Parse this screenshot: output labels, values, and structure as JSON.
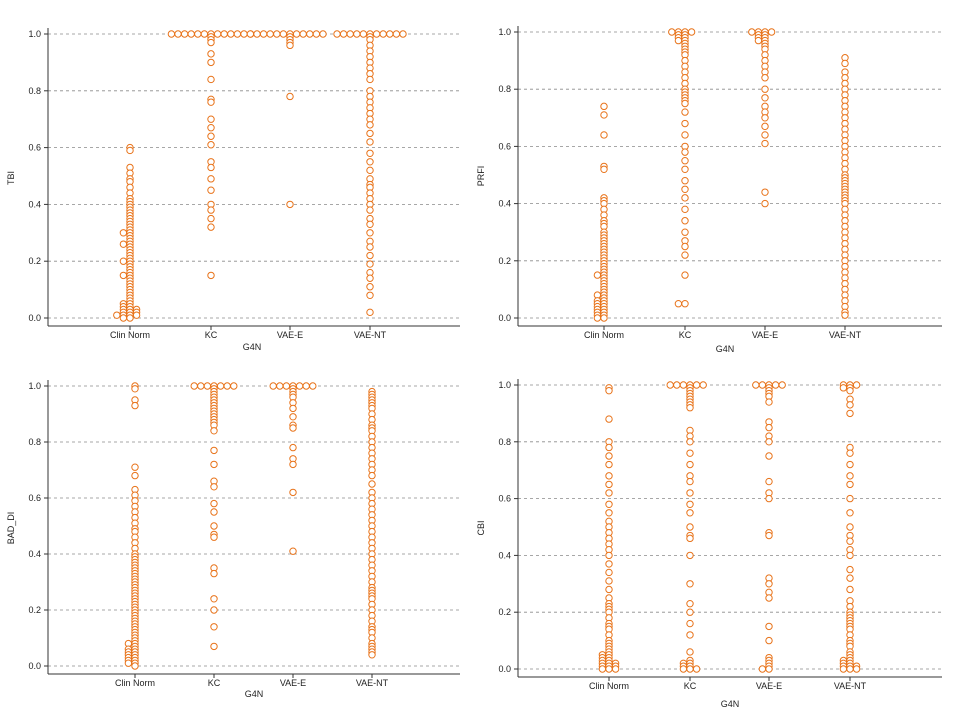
{
  "chart_data": [
    {
      "type": "scatter",
      "ylabel": "TBI",
      "xlabel": "G4N",
      "categories": [
        "Clin Norm",
        "KC",
        "VAE-E",
        "VAE-NT"
      ],
      "yticks": [
        "0.0",
        "0.2",
        "0.4",
        "0.6",
        "0.8",
        "1.0"
      ],
      "ylim": [
        0,
        1
      ],
      "grid": true,
      "marker_color": "#e8731a",
      "series": [
        {
          "category": "Clin Norm",
          "values": [
            0.6,
            0.59,
            0.53,
            0.51,
            0.49,
            0.48,
            0.46,
            0.44,
            0.42,
            0.41,
            0.4,
            0.39,
            0.38,
            0.37,
            0.36,
            0.35,
            0.34,
            0.33,
            0.32,
            0.31,
            0.3,
            0.3,
            0.29,
            0.28,
            0.27,
            0.26,
            0.26,
            0.25,
            0.24,
            0.23,
            0.22,
            0.21,
            0.2,
            0.2,
            0.19,
            0.18,
            0.17,
            0.16,
            0.15,
            0.15,
            0.14,
            0.13,
            0.12,
            0.11,
            0.1,
            0.09,
            0.08,
            0.07,
            0.06,
            0.05,
            0.05,
            0.04,
            0.04,
            0.03,
            0.03,
            0.03,
            0.02,
            0.02,
            0.02,
            0.01,
            0.01,
            0.01,
            0.01,
            0.0,
            0.0
          ]
        },
        {
          "category": "KC",
          "values": [
            1.0,
            1.0,
            1.0,
            1.0,
            1.0,
            1.0,
            1.0,
            1.0,
            1.0,
            1.0,
            1.0,
            1.0,
            1.0,
            0.99,
            0.98,
            0.97,
            0.93,
            0.9,
            0.84,
            0.77,
            0.76,
            0.7,
            0.67,
            0.64,
            0.61,
            0.55,
            0.53,
            0.49,
            0.45,
            0.4,
            0.38,
            0.35,
            0.32,
            0.15
          ]
        },
        {
          "category": "VAE-E",
          "values": [
            1.0,
            1.0,
            1.0,
            1.0,
            1.0,
            1.0,
            1.0,
            1.0,
            1.0,
            1.0,
            1.0,
            1.0,
            0.99,
            0.98,
            0.97,
            0.96,
            0.78,
            0.4
          ]
        },
        {
          "category": "VAE-NT",
          "values": [
            1.0,
            1.0,
            1.0,
            1.0,
            1.0,
            1.0,
            1.0,
            1.0,
            1.0,
            1.0,
            1.0,
            0.99,
            0.98,
            0.96,
            0.94,
            0.92,
            0.9,
            0.88,
            0.86,
            0.84,
            0.8,
            0.78,
            0.76,
            0.74,
            0.72,
            0.7,
            0.68,
            0.65,
            0.62,
            0.58,
            0.55,
            0.52,
            0.49,
            0.47,
            0.46,
            0.44,
            0.42,
            0.4,
            0.38,
            0.35,
            0.33,
            0.3,
            0.27,
            0.25,
            0.22,
            0.19,
            0.16,
            0.14,
            0.11,
            0.08,
            0.02
          ]
        }
      ]
    },
    {
      "type": "scatter",
      "ylabel": "PRFI",
      "xlabel": "G4N",
      "categories": [
        "Clin Norm",
        "KC",
        "VAE-E",
        "VAE-NT"
      ],
      "yticks": [
        "0.0",
        "0.2",
        "0.4",
        "0.6",
        "0.8",
        "1.0"
      ],
      "ylim": [
        0,
        1
      ],
      "grid": true,
      "marker_color": "#e8731a",
      "series": [
        {
          "category": "Clin Norm",
          "values": [
            0.74,
            0.71,
            0.64,
            0.53,
            0.52,
            0.42,
            0.41,
            0.4,
            0.38,
            0.36,
            0.34,
            0.33,
            0.32,
            0.3,
            0.29,
            0.28,
            0.27,
            0.26,
            0.25,
            0.24,
            0.23,
            0.22,
            0.21,
            0.2,
            0.19,
            0.18,
            0.17,
            0.16,
            0.15,
            0.15,
            0.14,
            0.13,
            0.12,
            0.11,
            0.1,
            0.09,
            0.08,
            0.08,
            0.07,
            0.06,
            0.06,
            0.05,
            0.05,
            0.04,
            0.04,
            0.03,
            0.03,
            0.02,
            0.02,
            0.01,
            0.01,
            0.0,
            0.0
          ]
        },
        {
          "category": "KC",
          "values": [
            1.0,
            1.0,
            1.0,
            1.0,
            0.99,
            0.99,
            0.98,
            0.98,
            0.97,
            0.97,
            0.96,
            0.95,
            0.94,
            0.93,
            0.92,
            0.9,
            0.88,
            0.86,
            0.84,
            0.82,
            0.8,
            0.79,
            0.78,
            0.77,
            0.76,
            0.75,
            0.72,
            0.68,
            0.64,
            0.6,
            0.58,
            0.55,
            0.52,
            0.48,
            0.45,
            0.42,
            0.38,
            0.34,
            0.3,
            0.27,
            0.25,
            0.22,
            0.15,
            0.05,
            0.05
          ]
        },
        {
          "category": "VAE-E",
          "values": [
            1.0,
            1.0,
            1.0,
            1.0,
            0.99,
            0.99,
            0.98,
            0.98,
            0.97,
            0.97,
            0.96,
            0.95,
            0.94,
            0.92,
            0.9,
            0.88,
            0.86,
            0.84,
            0.8,
            0.77,
            0.74,
            0.72,
            0.7,
            0.67,
            0.64,
            0.61,
            0.44,
            0.4
          ]
        },
        {
          "category": "VAE-NT",
          "values": [
            0.91,
            0.89,
            0.86,
            0.84,
            0.82,
            0.8,
            0.78,
            0.76,
            0.74,
            0.72,
            0.7,
            0.68,
            0.66,
            0.64,
            0.62,
            0.6,
            0.58,
            0.56,
            0.54,
            0.52,
            0.5,
            0.49,
            0.48,
            0.47,
            0.46,
            0.45,
            0.44,
            0.43,
            0.42,
            0.41,
            0.4,
            0.38,
            0.36,
            0.34,
            0.32,
            0.3,
            0.28,
            0.26,
            0.24,
            0.22,
            0.2,
            0.18,
            0.16,
            0.14,
            0.12,
            0.1,
            0.08,
            0.06,
            0.04,
            0.02,
            0.01
          ]
        }
      ]
    },
    {
      "type": "scatter",
      "ylabel": "BAD_DI",
      "xlabel": "G4N",
      "categories": [
        "Clin Norm",
        "KC",
        "VAE-E",
        "VAE-NT"
      ],
      "yticks": [
        "0.0",
        "0.2",
        "0.4",
        "0.6",
        "0.8",
        "1.0"
      ],
      "ylim": [
        0,
        1
      ],
      "grid": true,
      "marker_color": "#e8731a",
      "series": [
        {
          "category": "Clin Norm",
          "values": [
            1.0,
            0.99,
            0.95,
            0.93,
            0.71,
            0.68,
            0.63,
            0.61,
            0.59,
            0.57,
            0.55,
            0.53,
            0.51,
            0.49,
            0.48,
            0.46,
            0.44,
            0.42,
            0.4,
            0.39,
            0.38,
            0.37,
            0.36,
            0.35,
            0.34,
            0.33,
            0.32,
            0.31,
            0.3,
            0.29,
            0.28,
            0.27,
            0.26,
            0.25,
            0.24,
            0.23,
            0.22,
            0.21,
            0.2,
            0.19,
            0.18,
            0.17,
            0.16,
            0.15,
            0.14,
            0.13,
            0.12,
            0.11,
            0.1,
            0.09,
            0.08,
            0.08,
            0.07,
            0.06,
            0.06,
            0.05,
            0.05,
            0.04,
            0.04,
            0.03,
            0.03,
            0.02,
            0.02,
            0.01,
            0.01,
            0.0
          ]
        },
        {
          "category": "KC",
          "values": [
            1.0,
            1.0,
            1.0,
            1.0,
            1.0,
            1.0,
            1.0,
            0.99,
            0.98,
            0.97,
            0.96,
            0.95,
            0.94,
            0.93,
            0.92,
            0.91,
            0.9,
            0.89,
            0.88,
            0.87,
            0.86,
            0.84,
            0.77,
            0.72,
            0.66,
            0.64,
            0.58,
            0.55,
            0.5,
            0.47,
            0.46,
            0.35,
            0.33,
            0.24,
            0.2,
            0.14,
            0.07
          ]
        },
        {
          "category": "VAE-E",
          "values": [
            1.0,
            1.0,
            1.0,
            1.0,
            1.0,
            1.0,
            1.0,
            0.99,
            0.98,
            0.97,
            0.96,
            0.94,
            0.92,
            0.89,
            0.86,
            0.85,
            0.78,
            0.74,
            0.72,
            0.62,
            0.41
          ]
        },
        {
          "category": "VAE-NT",
          "values": [
            0.98,
            0.97,
            0.96,
            0.95,
            0.94,
            0.93,
            0.92,
            0.9,
            0.88,
            0.86,
            0.85,
            0.84,
            0.82,
            0.8,
            0.78,
            0.76,
            0.74,
            0.72,
            0.7,
            0.68,
            0.65,
            0.62,
            0.6,
            0.58,
            0.56,
            0.54,
            0.52,
            0.5,
            0.48,
            0.46,
            0.44,
            0.42,
            0.4,
            0.38,
            0.36,
            0.34,
            0.32,
            0.3,
            0.28,
            0.27,
            0.26,
            0.25,
            0.24,
            0.22,
            0.2,
            0.18,
            0.16,
            0.14,
            0.13,
            0.12,
            0.1,
            0.08,
            0.07,
            0.06,
            0.05,
            0.04
          ]
        }
      ]
    },
    {
      "type": "scatter",
      "ylabel": "CBI",
      "xlabel": "G4N",
      "categories": [
        "Clin Norm",
        "KC",
        "VAE-E",
        "VAE-NT"
      ],
      "yticks": [
        "0.0",
        "0.2",
        "0.4",
        "0.6",
        "0.8",
        "1.0"
      ],
      "ylim": [
        0,
        1
      ],
      "grid": true,
      "marker_color": "#e8731a",
      "series": [
        {
          "category": "Clin Norm",
          "values": [
            0.99,
            0.98,
            0.88,
            0.8,
            0.78,
            0.75,
            0.72,
            0.68,
            0.65,
            0.62,
            0.58,
            0.55,
            0.52,
            0.5,
            0.48,
            0.46,
            0.44,
            0.42,
            0.4,
            0.37,
            0.34,
            0.31,
            0.28,
            0.25,
            0.23,
            0.22,
            0.21,
            0.2,
            0.18,
            0.16,
            0.15,
            0.14,
            0.12,
            0.1,
            0.09,
            0.08,
            0.07,
            0.06,
            0.05,
            0.05,
            0.04,
            0.04,
            0.03,
            0.03,
            0.02,
            0.02,
            0.02,
            0.01,
            0.01,
            0.01,
            0.0,
            0.0,
            0.0
          ]
        },
        {
          "category": "KC",
          "values": [
            1.0,
            1.0,
            1.0,
            1.0,
            1.0,
            1.0,
            0.99,
            0.98,
            0.97,
            0.96,
            0.95,
            0.94,
            0.93,
            0.92,
            0.84,
            0.82,
            0.8,
            0.76,
            0.72,
            0.68,
            0.66,
            0.62,
            0.58,
            0.55,
            0.5,
            0.47,
            0.46,
            0.4,
            0.3,
            0.23,
            0.2,
            0.16,
            0.12,
            0.06,
            0.03,
            0.02,
            0.02,
            0.01,
            0.01,
            0.0,
            0.0,
            0.0
          ]
        },
        {
          "category": "VAE-E",
          "values": [
            1.0,
            1.0,
            1.0,
            1.0,
            1.0,
            0.99,
            0.98,
            0.97,
            0.96,
            0.94,
            0.87,
            0.85,
            0.82,
            0.8,
            0.75,
            0.66,
            0.62,
            0.6,
            0.48,
            0.47,
            0.32,
            0.3,
            0.27,
            0.25,
            0.15,
            0.1,
            0.04,
            0.03,
            0.02,
            0.01,
            0.0,
            0.0
          ]
        },
        {
          "category": "VAE-NT",
          "values": [
            1.0,
            1.0,
            1.0,
            0.99,
            0.99,
            0.98,
            0.95,
            0.93,
            0.9,
            0.78,
            0.76,
            0.72,
            0.68,
            0.65,
            0.6,
            0.55,
            0.5,
            0.47,
            0.45,
            0.42,
            0.4,
            0.35,
            0.32,
            0.28,
            0.24,
            0.22,
            0.2,
            0.19,
            0.18,
            0.17,
            0.16,
            0.15,
            0.14,
            0.12,
            0.1,
            0.09,
            0.08,
            0.06,
            0.05,
            0.04,
            0.03,
            0.03,
            0.02,
            0.02,
            0.01,
            0.01,
            0.01,
            0.0,
            0.0,
            0.0
          ]
        }
      ]
    }
  ]
}
